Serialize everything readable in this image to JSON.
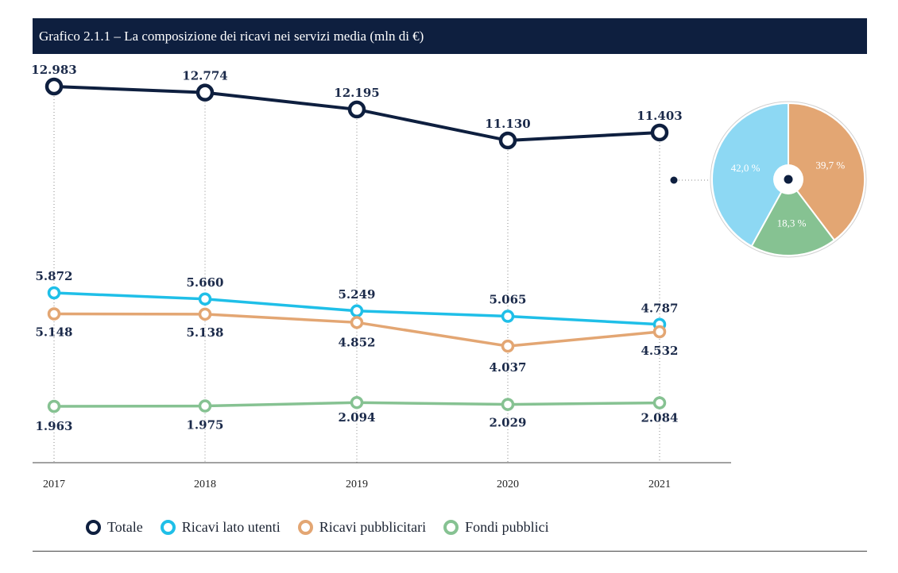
{
  "title": "Grafico 2.1.1 – La composizione dei ricavi nei servizi media (mln di €)",
  "legend": [
    {
      "label": "Totale",
      "color": "#0e1f3f"
    },
    {
      "label": "Ricavi lato utenti",
      "color": "#1fbfe8"
    },
    {
      "label": "Ricavi pubblicitari",
      "color": "#e3a673"
    },
    {
      "label": "Fondi pubblici",
      "color": "#86c292"
    }
  ],
  "chart_data": [
    {
      "type": "line",
      "x": [
        "2017",
        "2018",
        "2019",
        "2020",
        "2021"
      ],
      "series": [
        {
          "name": "Totale",
          "color": "#0e1f3f",
          "values": [
            12983,
            12774,
            12195,
            11130,
            11403
          ],
          "labels": [
            "12.983",
            "12.774",
            "12.195",
            "11.130",
            "11.403"
          ]
        },
        {
          "name": "Ricavi lato utenti",
          "color": "#1fbfe8",
          "values": [
            5872,
            5660,
            5249,
            5065,
            4787
          ],
          "labels": [
            "5.872",
            "5.660",
            "5.249",
            "5.065",
            "4.787"
          ]
        },
        {
          "name": "Ricavi pubblicitari",
          "color": "#e3a673",
          "values": [
            5148,
            5138,
            4852,
            4037,
            4532
          ],
          "labels": [
            "5.148",
            "5.138",
            "4.852",
            "4.037",
            "4.532"
          ]
        },
        {
          "name": "Fondi pubblici",
          "color": "#86c292",
          "values": [
            1963,
            1975,
            2094,
            2029,
            2084
          ],
          "labels": [
            "1.963",
            "1.975",
            "2.094",
            "2.029",
            "2.084"
          ]
        }
      ]
    },
    {
      "type": "pie",
      "slices": [
        {
          "value": 39.7,
          "label": "39,7 %",
          "color": "#e3a673"
        },
        {
          "value": 18.3,
          "label": "18,3 %",
          "color": "#86c292"
        },
        {
          "value": 42.0,
          "label": "42,0 %",
          "color": "#8dd8f3"
        }
      ]
    }
  ]
}
